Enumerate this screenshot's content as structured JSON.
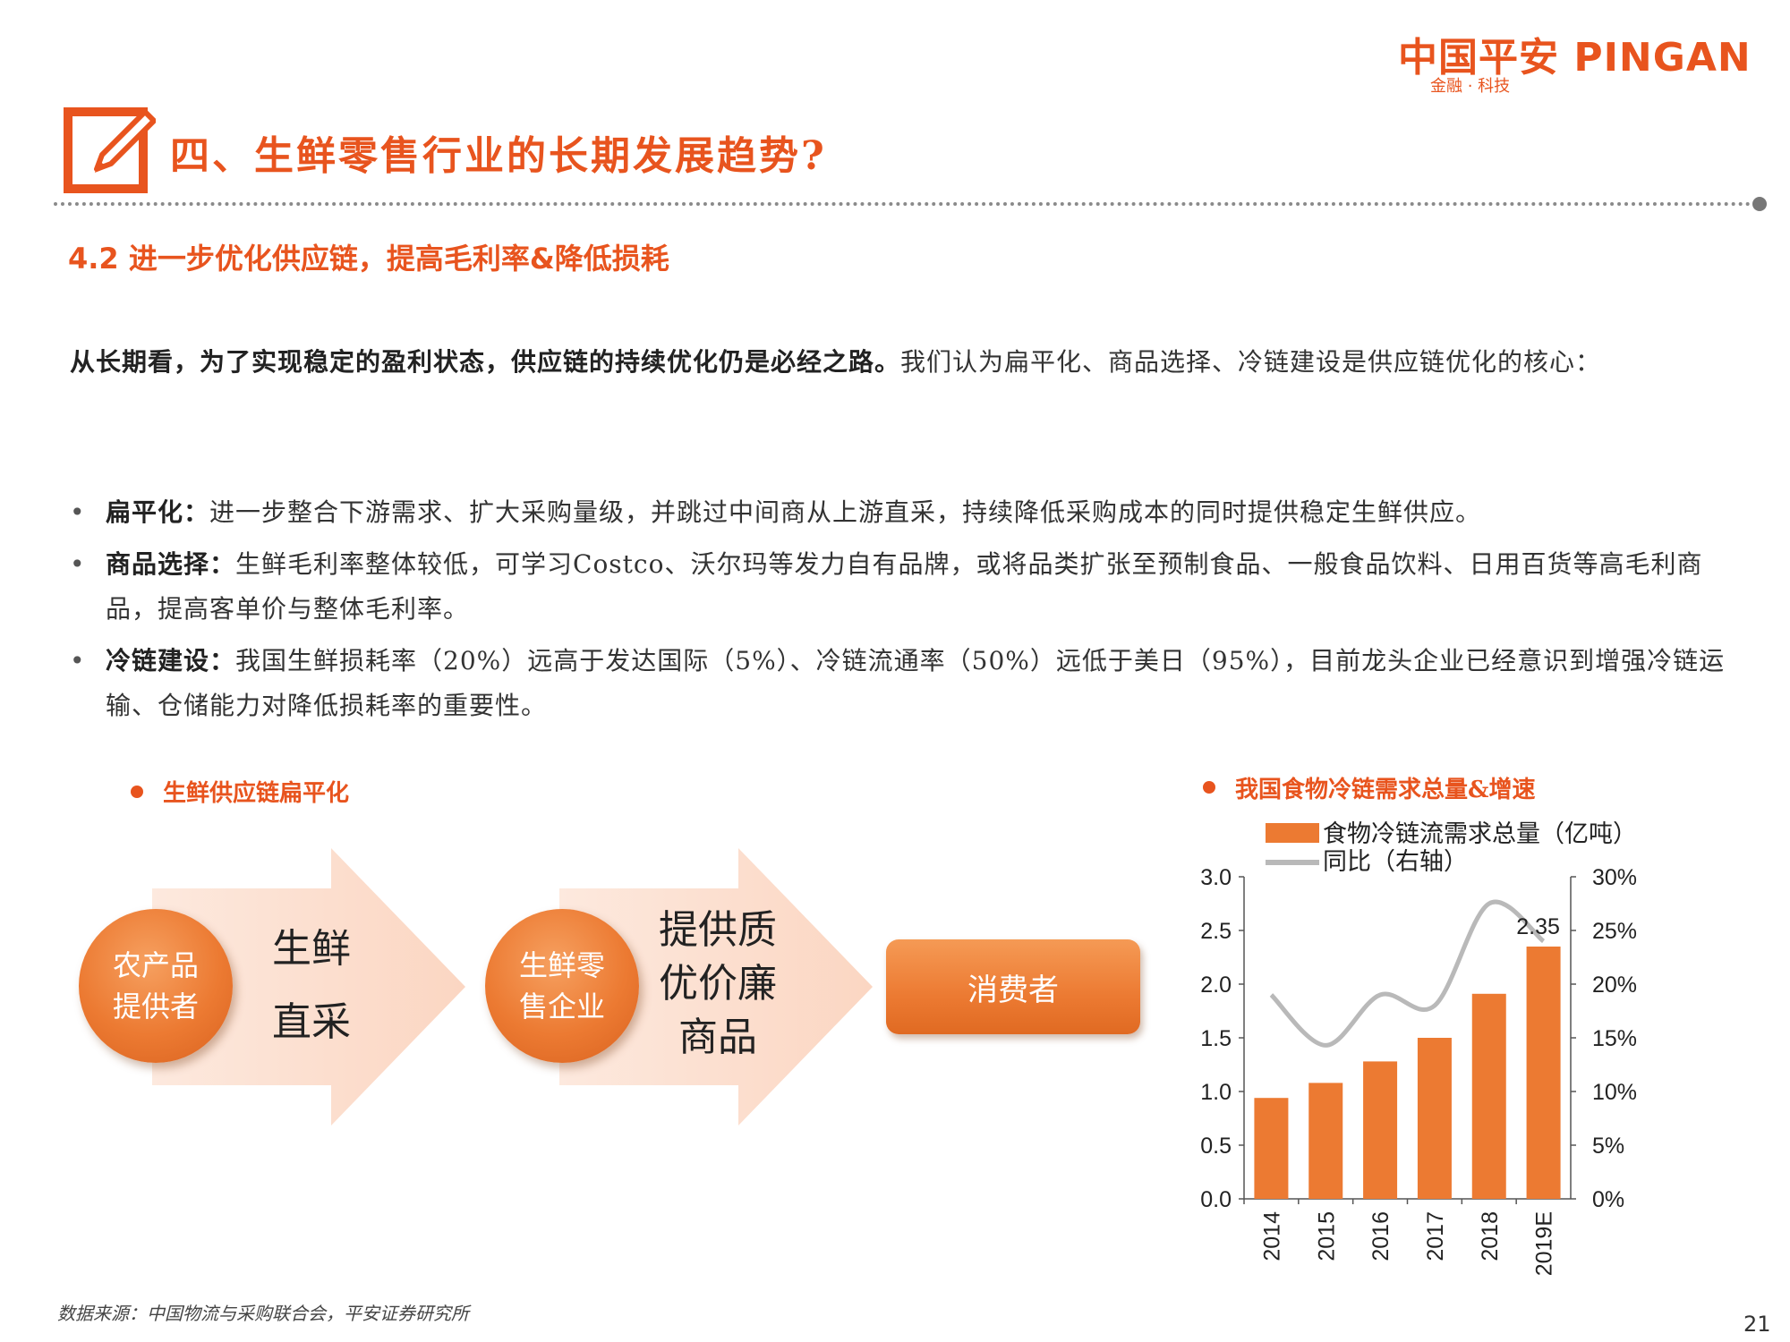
{
  "logo": {
    "main": "中国平安 PINGAN",
    "sub": "金融 · 科技"
  },
  "title": "四、生鲜零售行业的长期发展趋势?",
  "subtitle": "4.2 进一步优化供应链，提高毛利率&降低损耗",
  "intro": {
    "bold": "从长期看，为了实现稳定的盈利状态，供应链的持续优化仍是必经之路。",
    "rest": "我们认为扁平化、商品选择、冷链建设是供应链优化的核心："
  },
  "bullets": [
    {
      "head": "扁平化：",
      "text": "进一步整合下游需求、扩大采购量级，并跳过中间商从上游直采，持续降低采购成本的同时提供稳定生鲜供应。"
    },
    {
      "head": "商品选择：",
      "text": "生鲜毛利率整体较低，可学习Costco、沃尔玛等发力自有品牌，或将品类扩张至预制食品、一般食品饮料、日用百货等高毛利商品，提高客单价与整体毛利率。"
    },
    {
      "head": "冷链建设：",
      "text": "我国生鲜损耗率（20%）远高于发达国际（5%）、冷链流通率（50%）远低于美日（95%），目前龙头企业已经意识到增强冷链运输、仓储能力对降低损耗率的重要性。"
    }
  ],
  "diagram": {
    "label": "生鲜供应链扁平化",
    "node1": "农产品提供者",
    "arrow1": "生鲜直采",
    "node2": "生鲜零售企业",
    "arrow2": "提供质优价廉商品",
    "node3": "消费者"
  },
  "chart_label": "我国食物冷链需求总量&增速",
  "chart_data": {
    "type": "bar",
    "categories": [
      "2014",
      "2015",
      "2016",
      "2017",
      "2018",
      "2019E"
    ],
    "series": [
      {
        "name": "食物冷链流需求总量（亿吨）",
        "type": "bar",
        "axis": "left",
        "values": [
          0.94,
          1.08,
          1.28,
          1.5,
          1.91,
          2.35
        ]
      },
      {
        "name": "同比（右轴）",
        "type": "line",
        "axis": "right",
        "values": [
          19.0,
          14.3,
          19.0,
          18.0,
          27.5,
          24.0
        ]
      }
    ],
    "data_labels": [
      {
        "category": "2019E",
        "text": "2.35"
      }
    ],
    "ylim": [
      0,
      3.0
    ],
    "yticks": [
      "0.0",
      "0.5",
      "1.0",
      "1.5",
      "2.0",
      "2.5",
      "3.0"
    ],
    "y2lim": [
      0,
      30
    ],
    "y2ticks": [
      "0%",
      "5%",
      "10%",
      "15%",
      "20%",
      "25%",
      "30%"
    ],
    "legend_position": "top",
    "bar_color": "#ec7a32",
    "line_color": "#b9b9b9"
  },
  "footer": "数据来源：中国物流与采购联合会，平安证券研究所",
  "page_number": "21"
}
